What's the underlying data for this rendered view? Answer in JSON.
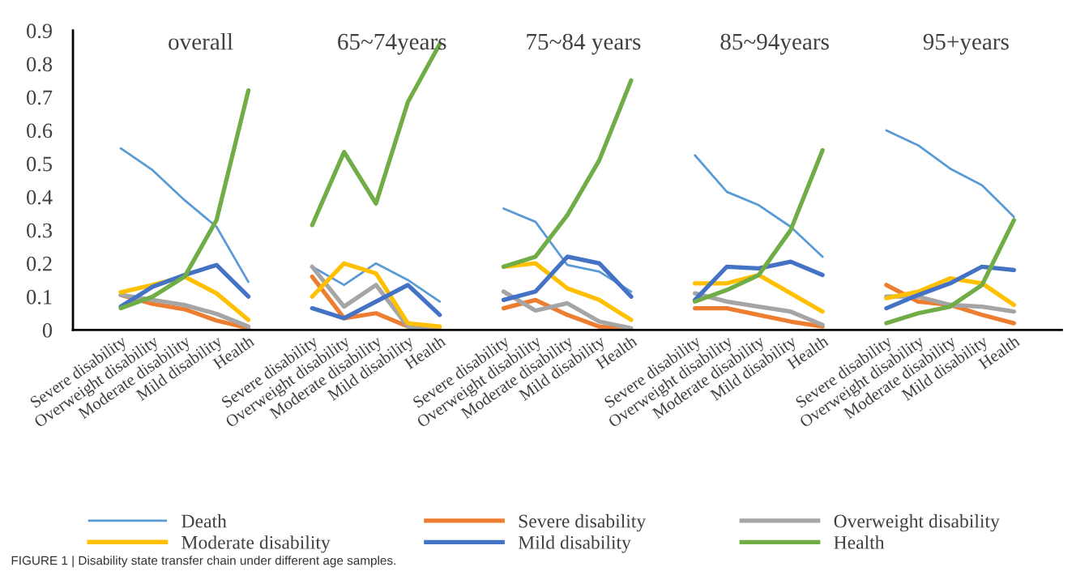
{
  "chart_data": {
    "type": "line",
    "categories": [
      "Severe disability",
      "Overweight disability",
      "Moderate disability",
      "Mild disability",
      "Health",
      null,
      "Severe disability",
      "Overweight disability",
      "Moderate disability",
      "Mild disability",
      "Health",
      null,
      "Severe disability",
      "Overweight disability",
      "Moderate disability",
      "Mild disability",
      "Health",
      null,
      "Severe disability",
      "Overweight disability",
      "Moderate disability",
      "Mild disability",
      "Health",
      null,
      "Severe disability",
      "Overweight disability",
      "Moderate disability",
      "Mild disability",
      "Health"
    ],
    "series": [
      {
        "name": "Death",
        "color": "#5b9bd5",
        "values": [
          0.546,
          0.48,
          0.39,
          0.31,
          0.144,
          null,
          0.19,
          0.135,
          0.2,
          0.15,
          0.085,
          null,
          0.365,
          0.325,
          0.195,
          0.175,
          0.115,
          null,
          0.525,
          0.415,
          0.375,
          0.31,
          0.22,
          null,
          0.6,
          0.555,
          0.485,
          0.435,
          0.34
        ]
      },
      {
        "name": "Severe disability",
        "color": "#ed7d31",
        "values": [
          0.105,
          0.078,
          0.062,
          0.028,
          0.005,
          null,
          0.16,
          0.035,
          0.05,
          0.01,
          0.0,
          null,
          0.065,
          0.09,
          0.045,
          0.01,
          0.0,
          null,
          0.065,
          0.065,
          0.045,
          0.025,
          0.01,
          null,
          0.135,
          0.085,
          0.075,
          0.045,
          0.02
        ]
      },
      {
        "name": "Overweight disability",
        "color": "#a5a5a5",
        "values": [
          0.105,
          0.09,
          0.075,
          0.048,
          0.01,
          null,
          0.19,
          0.07,
          0.135,
          0.01,
          0.0,
          null,
          0.115,
          0.058,
          0.08,
          0.025,
          0.005,
          null,
          0.11,
          0.085,
          0.07,
          0.055,
          0.015,
          null,
          0.1,
          0.1,
          0.075,
          0.07,
          0.055
        ]
      },
      {
        "name": "Moderate disability",
        "color": "#ffc000",
        "values": [
          0.113,
          0.135,
          0.16,
          0.11,
          0.03,
          null,
          0.1,
          0.2,
          0.17,
          0.02,
          0.01,
          null,
          0.19,
          0.2,
          0.125,
          0.09,
          0.03,
          null,
          0.14,
          0.14,
          0.165,
          0.11,
          0.055,
          null,
          0.095,
          0.115,
          0.155,
          0.14,
          0.075
        ]
      },
      {
        "name": "Mild disability",
        "color": "#4472c4",
        "values": [
          0.07,
          0.13,
          0.165,
          0.195,
          0.1,
          null,
          0.065,
          0.035,
          0.085,
          0.135,
          0.045,
          null,
          0.09,
          0.115,
          0.22,
          0.2,
          0.1,
          null,
          0.09,
          0.19,
          0.185,
          0.205,
          0.165,
          null,
          0.065,
          0.105,
          0.14,
          0.19,
          0.18
        ]
      },
      {
        "name": "Health",
        "color": "#70ad47",
        "values": [
          0.065,
          0.1,
          0.16,
          0.33,
          0.72,
          null,
          0.315,
          0.535,
          0.38,
          0.685,
          0.86,
          null,
          0.19,
          0.22,
          0.345,
          0.51,
          0.75,
          null,
          0.085,
          0.12,
          0.165,
          0.3,
          0.54,
          null,
          0.02,
          0.05,
          0.07,
          0.135,
          0.33
        ]
      }
    ],
    "ylim": [
      0,
      0.9
    ],
    "yticks": [
      0,
      0.1,
      0.2,
      0.3,
      0.4,
      0.5,
      0.6,
      0.7,
      0.8,
      0.9
    ],
    "grid": false,
    "legend": "bottom",
    "marker": "none",
    "line_style": "solid",
    "annotations": [
      "overall",
      "65~74years",
      "75~84 years",
      "85~94years",
      "95+years",
      "FIGURE 1 | Disability state transfer chain under different age samples."
    ]
  }
}
